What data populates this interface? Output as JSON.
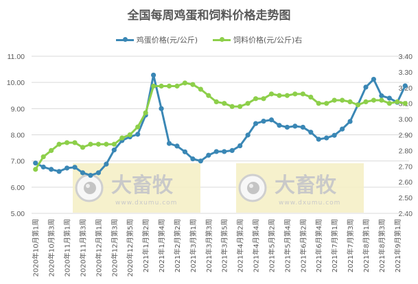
{
  "chart_data": {
    "type": "line",
    "title": "全国每周鸡蛋和饲料价格走势图",
    "xlabel": "",
    "ylabel_left": "",
    "ylabel_right": "",
    "legend_position": "top",
    "grid": true,
    "left_axis": {
      "ylim": [
        5.0,
        11.0
      ],
      "ticks": [
        "5.00",
        "6.00",
        "7.00",
        "8.00",
        "9.00",
        "10.00",
        "11.00"
      ]
    },
    "right_axis": {
      "ylim": [
        2.4,
        3.4
      ],
      "ticks": [
        "2.40",
        "2.50",
        "2.60",
        "2.70",
        "2.80",
        "2.90",
        "3.00",
        "3.10",
        "3.20",
        "3.30",
        "3.40"
      ]
    },
    "x_tick_labels": [
      "2020年10月第1周",
      "2020年10月第3周",
      "2020年11月第1周",
      "2020年11月第3周",
      "2020年12月第1周",
      "2020年12月第3周",
      "2020年12月第5周",
      "2021年1月第2周",
      "2021年1月第4周",
      "2021年2月第2周",
      "2021年3月第1周",
      "2021年3月第3周",
      "2021年3月第5周",
      "2021年4月第2周",
      "2021年4月第4周",
      "2021年5月第2周",
      "2021年5月第4周",
      "2021年6月第2周",
      "2021年6月第4周",
      "2021年7月第1周",
      "2021年7月第3周",
      "2021年8月第1周",
      "2021年8月第3周",
      "2021年9月第1周"
    ],
    "point_count": 48,
    "series": [
      {
        "name": "鸡蛋价格(元/公斤)",
        "axis": "left",
        "color": "#3a87b5",
        "values": [
          6.92,
          6.77,
          6.68,
          6.6,
          6.73,
          6.76,
          6.55,
          6.45,
          6.55,
          6.88,
          7.42,
          7.78,
          7.92,
          8.02,
          8.75,
          10.28,
          9.0,
          7.67,
          7.57,
          7.35,
          7.08,
          7.0,
          7.22,
          7.36,
          7.36,
          7.4,
          7.58,
          7.99,
          8.43,
          8.52,
          8.57,
          8.36,
          8.29,
          8.33,
          8.29,
          8.1,
          7.83,
          7.88,
          7.98,
          8.22,
          8.51,
          9.15,
          9.82,
          10.12,
          9.49,
          9.4,
          9.24,
          9.87
        ]
      },
      {
        "name": "饲料价格(元/公斤)右",
        "axis": "right",
        "color": "#8dcf4a",
        "values": [
          2.68,
          2.76,
          2.8,
          2.84,
          2.85,
          2.85,
          2.82,
          2.84,
          2.84,
          2.84,
          2.84,
          2.88,
          2.9,
          2.95,
          3.04,
          3.21,
          3.21,
          3.21,
          3.21,
          3.23,
          3.22,
          3.19,
          3.15,
          3.11,
          3.1,
          3.08,
          3.08,
          3.1,
          3.13,
          3.13,
          3.16,
          3.15,
          3.15,
          3.16,
          3.16,
          3.14,
          3.1,
          3.1,
          3.12,
          3.12,
          3.11,
          3.09,
          3.11,
          3.12,
          3.12,
          3.1,
          3.11,
          3.1
        ]
      }
    ]
  },
  "header": {
    "title": "全国每周鸡蛋和饲料价格走势图"
  },
  "legend": [
    {
      "label": "鸡蛋价格(元/公斤)",
      "color": "#3a87b5"
    },
    {
      "label": "饲料价格(元/公斤)右",
      "color": "#8dcf4a"
    }
  ],
  "watermark": {
    "brand": "大畜牧",
    "url": "www.dxumu.com",
    "bg_color": "#f5efc3"
  }
}
